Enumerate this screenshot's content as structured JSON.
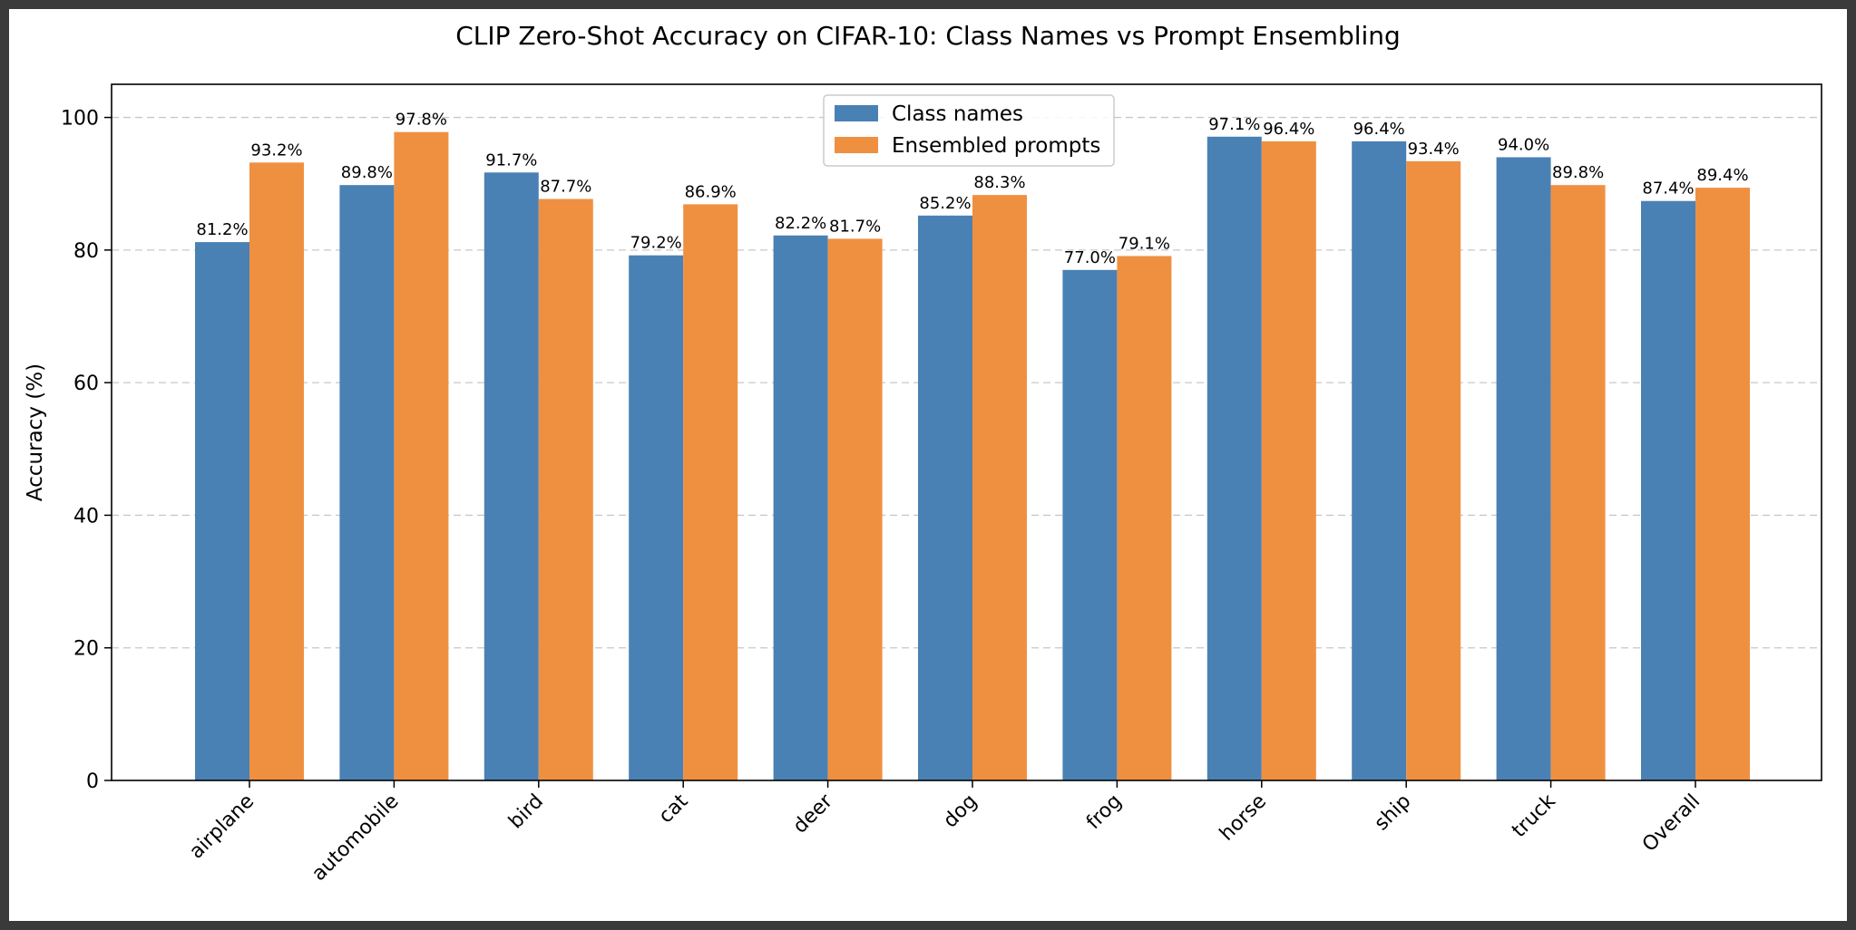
{
  "chart_data": {
    "type": "bar",
    "title": "CLIP Zero-Shot Accuracy on CIFAR-10: Class Names vs Prompt Ensembling",
    "xlabel": "",
    "ylabel": "Accuracy (%)",
    "ylim": [
      0,
      105
    ],
    "yticks": [
      0,
      20,
      40,
      60,
      80,
      100
    ],
    "grid": "horizontal dashed",
    "legend_position": "top-center",
    "categories": [
      "airplane",
      "automobile",
      "bird",
      "cat",
      "deer",
      "dog",
      "frog",
      "horse",
      "ship",
      "truck",
      "Overall"
    ],
    "series": [
      {
        "name": "Class names",
        "color": "#4a81b4",
        "values": [
          81.2,
          89.8,
          91.7,
          79.2,
          82.2,
          85.2,
          77.0,
          97.1,
          96.4,
          94.0,
          87.4
        ],
        "labels": [
          "81.2%",
          "89.8%",
          "91.7%",
          "79.2%",
          "82.2%",
          "85.2%",
          "77.0%",
          "97.1%",
          "96.4%",
          "94.0%",
          "87.4%"
        ]
      },
      {
        "name": "Ensembled prompts",
        "color": "#ef9041",
        "values": [
          93.2,
          97.8,
          87.7,
          86.9,
          81.7,
          88.3,
          79.1,
          96.4,
          93.4,
          89.8,
          89.4
        ],
        "labels": [
          "93.2%",
          "97.8%",
          "87.7%",
          "86.9%",
          "81.7%",
          "88.3%",
          "79.1%",
          "96.4%",
          "93.4%",
          "89.8%",
          "89.4%"
        ]
      }
    ]
  }
}
